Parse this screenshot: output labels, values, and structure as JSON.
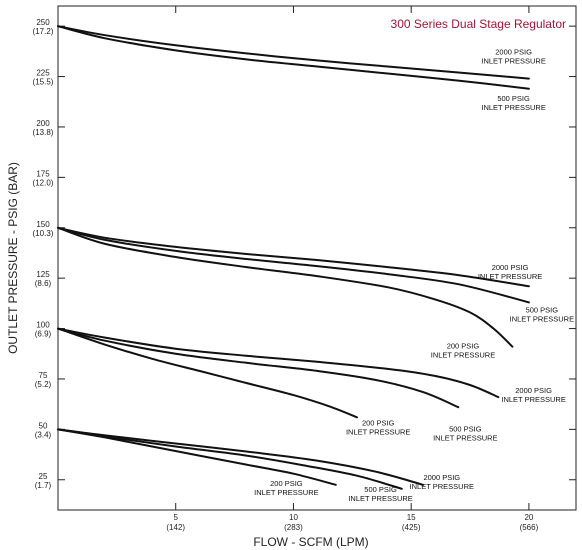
{
  "chart_data": {
    "type": "line",
    "title": "300 Series Dual Stage Regulator",
    "title_color": "#a3123a",
    "xlabel": "FLOW - SCFM (LPM)",
    "ylabel": "OUTLET PRESSURE - PSIG (BAR)",
    "xlim": [
      0,
      22
    ],
    "ylim": [
      10,
      260
    ],
    "grid": false,
    "x_ticks": [
      {
        "value": 5,
        "label": "5",
        "sublabel": "(142)"
      },
      {
        "value": 10,
        "label": "10",
        "sublabel": "(283)"
      },
      {
        "value": 15,
        "label": "15",
        "sublabel": "(425)"
      },
      {
        "value": 20,
        "label": "20",
        "sublabel": "(566)"
      }
    ],
    "y_ticks": [
      {
        "value": 250,
        "label": "250",
        "sublabel": "(17.2)"
      },
      {
        "value": 225,
        "label": "225",
        "sublabel": "(15.5)"
      },
      {
        "value": 200,
        "label": "200",
        "sublabel": "(13.8)"
      },
      {
        "value": 175,
        "label": "175",
        "sublabel": "(12.0)"
      },
      {
        "value": 150,
        "label": "150",
        "sublabel": "(10.3)"
      },
      {
        "value": 125,
        "label": "125",
        "sublabel": "(8.6)"
      },
      {
        "value": 100,
        "label": "100",
        "sublabel": "(6.9)"
      },
      {
        "value": 75,
        "label": "75",
        "sublabel": "(5.2)"
      },
      {
        "value": 50,
        "label": "50",
        "sublabel": "(3.4)"
      },
      {
        "value": 25,
        "label": "25",
        "sublabel": "(1.7)"
      }
    ],
    "series": [
      {
        "name": "2000 PSIG INLET PRESSURE",
        "set": 250,
        "x": [
          0,
          2,
          5,
          8,
          11,
          14,
          17,
          20
        ],
        "y": [
          250,
          245.5,
          240.5,
          236.5,
          233,
          230,
          227,
          224
        ]
      },
      {
        "name": "500 PSIG INLET PRESSURE",
        "set": 250,
        "x": [
          0,
          2,
          5,
          8,
          11,
          14,
          17,
          20
        ],
        "y": [
          250,
          244,
          238,
          233.5,
          230,
          226.5,
          223,
          219
        ]
      },
      {
        "name": "2000 PSIG INLET PRESSURE",
        "set": 150,
        "x": [
          0,
          2,
          5,
          8,
          11,
          14,
          17,
          20
        ],
        "y": [
          150,
          145,
          140.5,
          137,
          134,
          130.5,
          126.5,
          121
        ]
      },
      {
        "name": "500 PSIG INLET PRESSURE",
        "set": 150,
        "x": [
          0,
          2,
          5,
          8,
          11,
          14,
          17,
          20
        ],
        "y": [
          150,
          144,
          138.5,
          134.5,
          131,
          127,
          122,
          113
        ]
      },
      {
        "name": "200 PSIG INLET PRESSURE",
        "set": 150,
        "x": [
          0,
          2,
          5,
          8,
          11,
          14,
          16,
          17.5,
          18.5,
          19.3
        ],
        "y": [
          150,
          142,
          135.5,
          130.5,
          126,
          120.5,
          114.5,
          108,
          100,
          91
        ]
      },
      {
        "name": "2000 PSIG INLET PRESSURE",
        "set": 100,
        "x": [
          0,
          2,
          5,
          8,
          11,
          14,
          16,
          17.5,
          18.7
        ],
        "y": [
          100,
          95.5,
          90,
          86.5,
          83.5,
          80,
          76.5,
          72,
          66
        ]
      },
      {
        "name": "500 PSIG INLET PRESSURE",
        "set": 100,
        "x": [
          0,
          2,
          5,
          8,
          11,
          13.5,
          15.5,
          17
        ],
        "y": [
          100,
          94,
          87.5,
          83,
          79,
          74.5,
          68.5,
          61
        ]
      },
      {
        "name": "200 PSIG INLET PRESSURE",
        "set": 100,
        "x": [
          0,
          2,
          4,
          6,
          8,
          10,
          11.5,
          12.7
        ],
        "y": [
          100,
          92,
          85,
          79,
          73,
          67,
          61.5,
          56
        ]
      },
      {
        "name": "2000 PSIG INLET PRESSURE",
        "set": 50,
        "x": [
          0,
          2,
          5,
          8,
          11,
          13.5,
          15.5
        ],
        "y": [
          50,
          47,
          43,
          39,
          34.5,
          29,
          22.5
        ]
      },
      {
        "name": "500 PSIG INLET PRESSURE",
        "set": 50,
        "x": [
          0,
          2,
          5,
          8,
          10.5,
          12.7,
          14.6
        ],
        "y": [
          50,
          46.5,
          41.5,
          37,
          32,
          27,
          20.5
        ]
      },
      {
        "name": "200 PSIG INLET PRESSURE",
        "set": 50,
        "x": [
          0,
          2,
          4,
          6,
          8,
          10,
          11.8
        ],
        "y": [
          50,
          46,
          41.5,
          37,
          32.5,
          28,
          22.5
        ]
      }
    ],
    "annotations": [
      {
        "lines": [
          "2000 PSIG",
          "INLET PRESSURE"
        ],
        "x": 19.35,
        "y": 236
      },
      {
        "lines": [
          "500 PSIG",
          "INLET PRESSURE"
        ],
        "x": 19.35,
        "y": 213
      },
      {
        "lines": [
          "2000 PSIG",
          "INLET PRESSURE"
        ],
        "x": 19.2,
        "y": 129
      },
      {
        "lines": [
          "500 PSIG",
          "INLET PRESSURE"
        ],
        "x": 20.55,
        "y": 108
      },
      {
        "lines": [
          "200 PSIG",
          "INLET PRESSURE"
        ],
        "x": 17.2,
        "y": 90
      },
      {
        "lines": [
          "2000 PSIG",
          "INLET PRESSURE"
        ],
        "x": 20.2,
        "y": 68
      },
      {
        "lines": [
          "500 PSIG",
          "INLET PRESSURE"
        ],
        "x": 17.3,
        "y": 49
      },
      {
        "lines": [
          "200 PSIG",
          "INLET PRESSURE"
        ],
        "x": 13.6,
        "y": 52
      },
      {
        "lines": [
          "2000 PSIG",
          "INLET PRESSURE"
        ],
        "x": 16.3,
        "y": 25
      },
      {
        "lines": [
          "500 PSIG",
          "INLET PRESSURE"
        ],
        "x": 13.7,
        "y": 19
      },
      {
        "lines": [
          "200 PSIG",
          "INLET PRESSURE"
        ],
        "x": 9.7,
        "y": 22
      }
    ]
  }
}
